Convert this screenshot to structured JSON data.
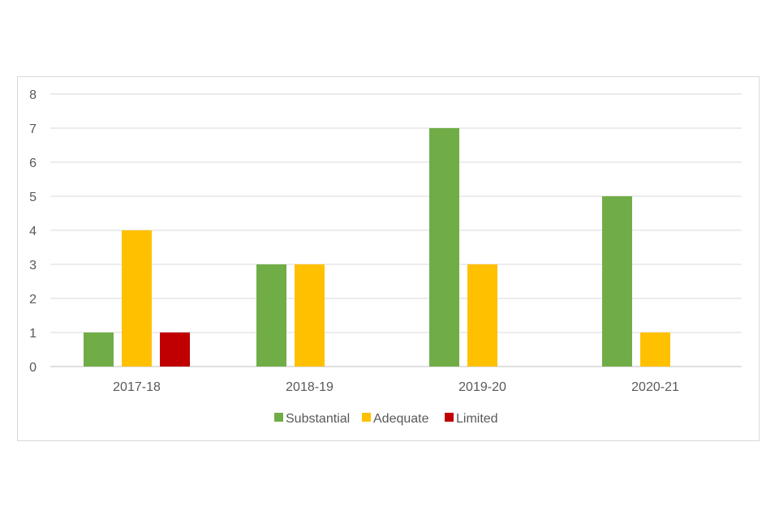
{
  "chart_data": {
    "type": "bar",
    "title": "",
    "xlabel": "",
    "ylabel": "",
    "categories": [
      "2017-18",
      "2018-19",
      "2019-20",
      "2020-21"
    ],
    "series": [
      {
        "name": "Substantial",
        "color": "#70AD47",
        "values": [
          1,
          3,
          7,
          5
        ]
      },
      {
        "name": "Adequate",
        "color": "#FFC000",
        "values": [
          4,
          3,
          3,
          1
        ]
      },
      {
        "name": "Limited",
        "color": "#C00000",
        "values": [
          1,
          0,
          0,
          0
        ]
      }
    ],
    "ylim": [
      0,
      8
    ],
    "yticks": [
      "0",
      "1",
      "2",
      "3",
      "4",
      "5",
      "6",
      "7",
      "8"
    ],
    "grid": true,
    "legend": "bottom"
  }
}
